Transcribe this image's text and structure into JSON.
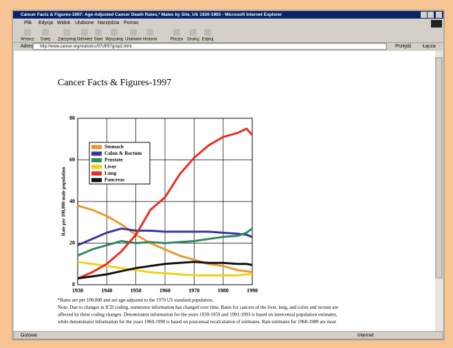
{
  "window": {
    "title": "Cancer Facts & Figures-1997: Age-Adjusted Cancer Death Rates,* Males by Site, US 1930-1993 - Microsoft Internet Explorer"
  },
  "menu": [
    "Plik",
    "Edycja",
    "Widok",
    "Ulubione",
    "Narzędzia",
    "Pomoc"
  ],
  "toolbar": [
    "Wstecz",
    "Dalej",
    "Zatrzymaj",
    "Odśwież",
    "Start",
    "Wyszukaj",
    "Ulubione",
    "Historia",
    "Poczta",
    "Drukuj",
    "Edytuj"
  ],
  "address": {
    "label": "Adres",
    "url": "http://www.cancer.org/statistics/97cff/97grap2.html",
    "go": "Przejdź",
    "links": "Łącza"
  },
  "page": {
    "heading": "Cancer Facts & Figures-1997",
    "footnotes": [
      "*Rates are per 100,000 and are age-adjusted to the 1970 US standard population.",
      "Note: Due to changes in ICD coding, numerator information has changed over time. Rates for cancers of the liver, lung, and colon and rectum are",
      "affected by these coding changes. Denominator information for the years 1930-1959 and 1991-1993 is based on intercensal population estimates,",
      "while denominator information for the years 1960-1990 is based on postcensal recalculation of estimates. Rate estimates for 1968-1989 are most"
    ]
  },
  "status": {
    "left": "Gotowe",
    "right": "Internet"
  },
  "chart_data": {
    "type": "line",
    "y_label": "Rate per 100,000 male population",
    "x": [
      1930,
      1935,
      1940,
      1945,
      1950,
      1955,
      1960,
      1965,
      1970,
      1975,
      1980,
      1985,
      1988,
      1990
    ],
    "xlim": [
      1930,
      1990
    ],
    "xticks": [
      1930,
      1940,
      1950,
      1960,
      1970,
      1980,
      1990
    ],
    "ylim": [
      0,
      80
    ],
    "yticks": [
      0,
      20,
      40,
      60,
      80
    ],
    "grid": true,
    "legend": "upper left",
    "series": [
      {
        "name": "Stomach",
        "color": "#f0962a",
        "values": [
          38,
          36,
          33,
          29,
          24,
          20,
          17,
          14,
          12,
          10,
          9,
          7,
          6.5,
          6
        ]
      },
      {
        "name": "Colon & Rectum",
        "color": "#3636a0",
        "values": [
          19,
          22,
          25,
          27,
          26,
          26,
          25.5,
          25.5,
          25.5,
          25.5,
          25,
          24.5,
          24,
          23
        ]
      },
      {
        "name": "Prostate",
        "color": "#2e8a5c",
        "values": [
          14,
          17,
          19,
          21,
          20,
          20.5,
          20,
          20.5,
          21,
          22,
          23,
          23.5,
          25,
          27
        ]
      },
      {
        "name": "Liver",
        "color": "#f2d016",
        "values": [
          11,
          10,
          9,
          8,
          7,
          6,
          5.5,
          5,
          4.5,
          4.5,
          4.5,
          4.5,
          5,
          5
        ]
      },
      {
        "name": "Lung",
        "color": "#ee2a22",
        "values": [
          3,
          6,
          10,
          16,
          24,
          36,
          42,
          53,
          61,
          67,
          71,
          73,
          75,
          72
        ]
      },
      {
        "name": "Pancreas",
        "color": "#111111",
        "values": [
          3,
          4,
          5,
          6.5,
          8,
          9,
          10,
          10.5,
          11,
          10.5,
          10.5,
          10,
          10,
          9.5
        ]
      }
    ]
  }
}
